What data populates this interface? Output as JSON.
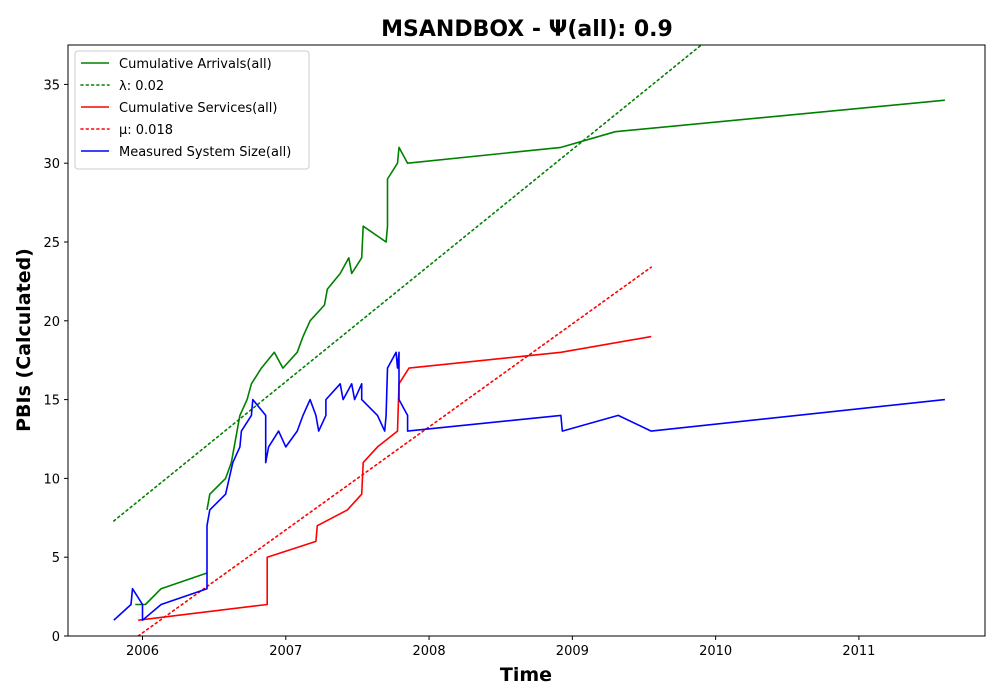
{
  "chart_data": {
    "type": "line",
    "title": "MSANDBOX -  Ψ(all): 0.9",
    "xlabel": "Time",
    "ylabel": "PBIs (Calculated)",
    "xlim": [
      2005.48,
      2011.88
    ],
    "ylim": [
      0,
      37.5
    ],
    "xticks": [
      2006,
      2007,
      2008,
      2009,
      2010,
      2011
    ],
    "xtick_labels": [
      "2006",
      "2007",
      "2008",
      "2009",
      "2010",
      "2011"
    ],
    "yticks": [
      0,
      5,
      10,
      15,
      20,
      25,
      30,
      35
    ],
    "ytick_labels": [
      "0",
      "5",
      "10",
      "15",
      "20",
      "25",
      "30",
      "35"
    ],
    "grid": false,
    "legend_position": "top-left",
    "series": [
      {
        "name": "Cumulative Arrivals(all)",
        "color": "#008000",
        "style": "solid",
        "points": [
          [
            2005.95,
            2
          ],
          [
            2006.02,
            2
          ],
          [
            2006.13,
            3
          ],
          [
            2006.45,
            4
          ]
        ],
        "points2": [
          [
            2006.45,
            8
          ],
          [
            2006.47,
            9
          ],
          [
            2006.58,
            10
          ],
          [
            2006.62,
            11
          ],
          [
            2006.64,
            12
          ],
          [
            2006.68,
            14
          ],
          [
            2006.73,
            15
          ],
          [
            2006.76,
            16
          ],
          [
            2006.83,
            17
          ],
          [
            2006.92,
            18
          ],
          [
            2006.98,
            17
          ],
          [
            2007.08,
            18
          ],
          [
            2007.12,
            19
          ],
          [
            2007.17,
            20
          ],
          [
            2007.27,
            21
          ],
          [
            2007.29,
            22
          ],
          [
            2007.38,
            23
          ],
          [
            2007.44,
            24
          ],
          [
            2007.46,
            23
          ],
          [
            2007.53,
            24
          ],
          [
            2007.54,
            26
          ],
          [
            2007.7,
            25
          ],
          [
            2007.71,
            26
          ],
          [
            2007.71,
            29
          ],
          [
            2007.78,
            30
          ],
          [
            2007.79,
            31
          ],
          [
            2007.85,
            30
          ],
          [
            2008.92,
            31
          ],
          [
            2009.3,
            32
          ],
          [
            2011.6,
            34
          ]
        ]
      },
      {
        "name": "λ: 0.02",
        "color": "#008000",
        "style": "dotted",
        "points": [
          [
            2005.8,
            7.3
          ],
          [
            2009.9,
            37.5
          ]
        ]
      },
      {
        "name": "Cumulative Services(all)",
        "color": "#ff0000",
        "style": "solid",
        "points": [
          [
            2005.97,
            1
          ],
          [
            2006.87,
            2
          ],
          [
            2006.87,
            5
          ],
          [
            2007.21,
            6
          ],
          [
            2007.22,
            7
          ],
          [
            2007.43,
            8
          ],
          [
            2007.53,
            9
          ],
          [
            2007.54,
            11
          ],
          [
            2007.64,
            12
          ],
          [
            2007.78,
            13
          ],
          [
            2007.79,
            16
          ],
          [
            2007.86,
            17
          ],
          [
            2008.92,
            18
          ],
          [
            2009.55,
            19
          ]
        ]
      },
      {
        "name": "μ: 0.018",
        "color": "#ff0000",
        "style": "dotted",
        "points": [
          [
            2005.97,
            0
          ],
          [
            2009.55,
            23.4
          ]
        ]
      },
      {
        "name": "Measured System Size(all)",
        "color": "#0000ff",
        "style": "solid",
        "points": [
          [
            2005.8,
            1
          ],
          [
            2005.92,
            2
          ],
          [
            2005.93,
            3
          ],
          [
            2006.0,
            2
          ],
          [
            2006.0,
            1
          ],
          [
            2006.13,
            2
          ],
          [
            2006.45,
            3
          ],
          [
            2006.45,
            7
          ],
          [
            2006.47,
            8
          ],
          [
            2006.58,
            9
          ],
          [
            2006.63,
            11
          ],
          [
            2006.68,
            12
          ],
          [
            2006.69,
            13
          ],
          [
            2006.76,
            14
          ],
          [
            2006.77,
            15
          ],
          [
            2006.86,
            14
          ],
          [
            2006.86,
            11
          ],
          [
            2006.88,
            12
          ],
          [
            2006.95,
            13
          ],
          [
            2007.0,
            12
          ],
          [
            2007.08,
            13
          ],
          [
            2007.12,
            14
          ],
          [
            2007.17,
            15
          ],
          [
            2007.21,
            14
          ],
          [
            2007.23,
            13
          ],
          [
            2007.28,
            14
          ],
          [
            2007.28,
            15
          ],
          [
            2007.38,
            16
          ],
          [
            2007.4,
            15
          ],
          [
            2007.46,
            16
          ],
          [
            2007.48,
            15
          ],
          [
            2007.53,
            16
          ],
          [
            2007.53,
            15
          ],
          [
            2007.64,
            14
          ],
          [
            2007.69,
            13
          ],
          [
            2007.7,
            14
          ],
          [
            2007.71,
            17
          ],
          [
            2007.77,
            18
          ],
          [
            2007.78,
            17
          ],
          [
            2007.79,
            18
          ],
          [
            2007.79,
            15
          ],
          [
            2007.85,
            14
          ],
          [
            2007.85,
            13
          ],
          [
            2008.92,
            14
          ],
          [
            2008.93,
            13
          ],
          [
            2009.32,
            14
          ],
          [
            2009.55,
            13
          ],
          [
            2011.6,
            15
          ]
        ]
      }
    ]
  }
}
